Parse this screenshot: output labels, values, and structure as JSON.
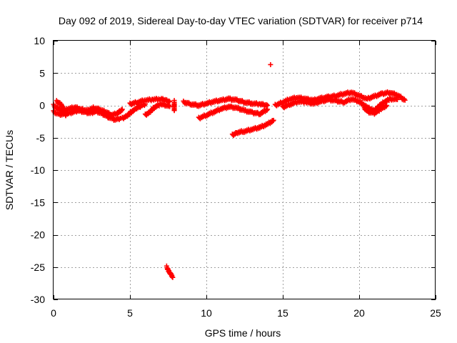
{
  "chart_data": {
    "type": "scatter",
    "title": "Day 092 of 2019, Sidereal Day-to-day VTEC variation (SDTVAR) for receiver p714",
    "xlabel": "GPS time / hours",
    "ylabel": "SDTVAR / TECUs",
    "xlim": [
      0,
      25
    ],
    "ylim": [
      -30,
      10
    ],
    "xticks": [
      0,
      5,
      10,
      15,
      20,
      25
    ],
    "yticks": [
      -30,
      -25,
      -20,
      -15,
      -10,
      -5,
      0,
      5,
      10
    ],
    "grid": true,
    "marker": "+",
    "color": "#ff0000",
    "series": [
      {
        "name": "SDTVAR",
        "segments": [
          {
            "x": [
              0.0,
              0.3,
              0.6,
              1.0,
              1.4,
              1.8,
              2.2,
              2.6,
              3.0,
              3.4,
              3.8,
              4.2,
              4.5
            ],
            "y": [
              0.0,
              -0.5,
              -0.9,
              -0.5,
              -0.3,
              -0.6,
              -0.8,
              -0.4,
              -0.6,
              -1.0,
              -1.5,
              -1.2,
              -0.6
            ]
          },
          {
            "x": [
              0.0,
              0.4,
              0.8,
              1.2,
              1.6,
              2.0,
              2.4,
              2.8,
              3.2,
              3.6,
              4.0,
              4.4
            ],
            "y": [
              -1.0,
              -1.4,
              -1.3,
              -1.1,
              -0.8,
              -1.0,
              -1.2,
              -0.9,
              -1.3,
              -1.8,
              -2.2,
              -2.0
            ]
          },
          {
            "x": [
              0.2,
              0.5,
              0.8
            ],
            "y": [
              0.6,
              0.2,
              -1.6
            ]
          },
          {
            "x": [
              4.5,
              4.8,
              5.1,
              5.4,
              5.7,
              6.0
            ],
            "y": [
              -2.0,
              -1.6,
              -1.0,
              -0.5,
              -0.1,
              0.2
            ]
          },
          {
            "x": [
              5.0,
              5.5,
              6.0,
              6.5,
              7.0,
              7.3,
              7.6
            ],
            "y": [
              0.2,
              0.5,
              0.8,
              0.9,
              1.0,
              0.8,
              0.6
            ]
          },
          {
            "x": [
              6.0,
              6.3,
              6.6,
              7.0,
              7.4,
              7.6
            ],
            "y": [
              -1.5,
              -1.0,
              -0.3,
              0.2,
              0.0,
              -0.2
            ]
          },
          {
            "x": [
              7.9,
              7.9
            ],
            "y": [
              0.6,
              -0.8
            ]
          },
          {
            "x": [
              7.4,
              7.5,
              7.6,
              7.7,
              7.8
            ],
            "y": [
              -25.0,
              -25.4,
              -25.8,
              -26.2,
              -26.6
            ]
          },
          {
            "x": [
              8.5,
              9.0,
              9.5,
              10.0,
              10.5,
              11.0,
              11.5,
              12.0,
              12.5,
              13.0,
              13.5,
              14.0
            ],
            "y": [
              0.5,
              0.2,
              0.0,
              0.3,
              0.6,
              0.8,
              1.0,
              0.8,
              0.5,
              0.3,
              0.2,
              0.0
            ]
          },
          {
            "x": [
              9.5,
              10.0,
              10.5,
              11.0,
              11.5,
              12.0,
              12.5,
              13.0,
              13.5,
              14.0
            ],
            "y": [
              -2.0,
              -1.5,
              -1.0,
              -0.5,
              -0.2,
              -0.4,
              -0.8,
              -1.1,
              -1.3,
              -0.6
            ]
          },
          {
            "x": [
              11.7,
              12.0,
              12.5,
              13.0,
              13.5,
              14.0,
              14.4
            ],
            "y": [
              -4.6,
              -4.2,
              -4.0,
              -3.7,
              -3.4,
              -2.9,
              -2.3
            ]
          },
          {
            "x": [
              14.2
            ],
            "y": [
              6.3
            ]
          },
          {
            "x": [
              14.5,
              15.0,
              15.5,
              16.0,
              16.5,
              17.0,
              17.5,
              18.0,
              18.5,
              19.0,
              19.5,
              20.0,
              20.5,
              21.0,
              21.5,
              22.0,
              22.5,
              23.0
            ],
            "y": [
              0.0,
              0.5,
              1.0,
              1.2,
              1.0,
              0.8,
              1.1,
              1.3,
              1.5,
              1.8,
              2.0,
              1.5,
              1.0,
              1.4,
              1.8,
              2.0,
              1.6,
              0.8
            ]
          },
          {
            "x": [
              15.0,
              15.5,
              16.0,
              16.5,
              17.0,
              17.5,
              18.0,
              18.5,
              19.0,
              19.5,
              20.0,
              20.5,
              21.0,
              21.5,
              22.0,
              22.5
            ],
            "y": [
              -0.3,
              0.2,
              0.6,
              0.5,
              0.3,
              0.6,
              0.9,
              0.7,
              0.5,
              1.0,
              0.6,
              -0.3,
              -0.8,
              0.3,
              1.0,
              0.9
            ]
          },
          {
            "x": [
              20.3,
              20.6,
              21.0,
              21.4,
              21.8
            ],
            "y": [
              -0.3,
              -1.0,
              -1.2,
              -0.6,
              0.0
            ]
          }
        ]
      }
    ]
  }
}
